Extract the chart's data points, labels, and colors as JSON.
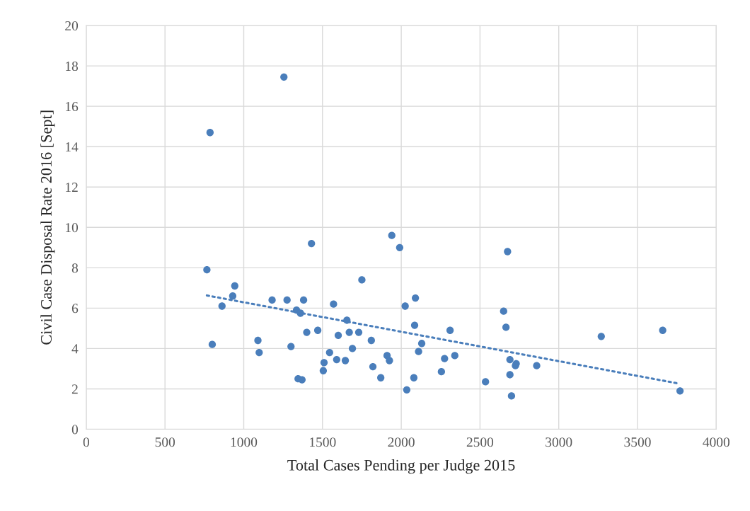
{
  "chart_data": {
    "type": "scatter",
    "xlabel": "Total Cases Pending per Judge 2015",
    "ylabel": "Civil Case Disposal Rate 2016 [Sept]",
    "xlim": [
      0,
      4000
    ],
    "xticks": [
      0,
      500,
      1000,
      1500,
      2000,
      2500,
      3000,
      3500,
      4000
    ],
    "ylim": [
      0,
      20
    ],
    "yticks": [
      0,
      2,
      4,
      6,
      8,
      10,
      12,
      14,
      16,
      18,
      20
    ],
    "grid": true,
    "legend": false,
    "series": [
      {
        "color": "#4a7ebb",
        "marker": "circle",
        "x": [
          766,
          786,
          800,
          862,
          930,
          943,
          1090,
          1098,
          1180,
          1255,
          1275,
          1300,
          1335,
          1345,
          1360,
          1370,
          1380,
          1400,
          1430,
          1470,
          1505,
          1510,
          1545,
          1570,
          1590,
          1600,
          1645,
          1655,
          1670,
          1690,
          1730,
          1750,
          1810,
          1820,
          1870,
          1910,
          1925,
          1940,
          1990,
          2025,
          2035,
          2080,
          2085,
          2090,
          2110,
          2130,
          2255,
          2275,
          2310,
          2340,
          2535,
          2650,
          2665,
          2675,
          2690,
          2690,
          2700,
          2725,
          2730,
          2860,
          3270,
          3660,
          3770
        ],
        "values": [
          7.9,
          14.7,
          4.2,
          6.1,
          6.6,
          7.1,
          4.4,
          3.8,
          6.4,
          17.45,
          6.4,
          4.1,
          5.9,
          2.5,
          5.75,
          2.45,
          6.4,
          4.8,
          9.2,
          4.9,
          2.9,
          3.3,
          3.8,
          6.2,
          3.45,
          4.65,
          3.4,
          5.4,
          4.8,
          4.0,
          4.8,
          7.4,
          4.4,
          3.1,
          2.55,
          3.65,
          3.4,
          9.6,
          9.0,
          6.1,
          1.95,
          2.55,
          5.15,
          6.5,
          3.85,
          4.25,
          2.85,
          3.5,
          4.9,
          3.65,
          2.35,
          5.85,
          5.05,
          8.8,
          3.45,
          2.7,
          1.65,
          3.15,
          3.25,
          3.15,
          4.6,
          4.9,
          1.9
        ]
      },
      {
        "type": "line",
        "color": "#4a7ebb",
        "line_style": "dotted",
        "marker": "none",
        "x": [
          766,
          3750
        ],
        "values": [
          6.63,
          2.28
        ]
      }
    ]
  }
}
